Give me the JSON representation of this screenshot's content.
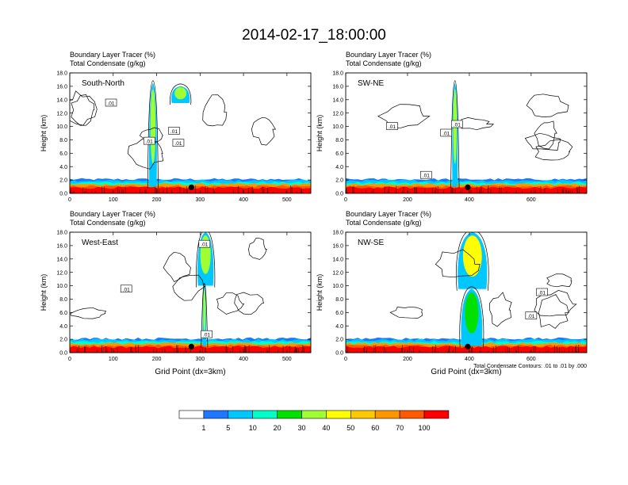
{
  "title": "2014-02-17_18:00:00",
  "colors": {
    "background": "#ffffff",
    "frame": "#000000",
    "contour": "#000000",
    "surface_marker": "#000000"
  },
  "colorbar": {
    "labels": [
      "1",
      "5",
      "10",
      "20",
      "30",
      "40",
      "50",
      "60",
      "70",
      "100"
    ],
    "colors": [
      "#ffffff",
      "#1e78ff",
      "#00c8ff",
      "#00ffc8",
      "#00e100",
      "#a0ff32",
      "#ffff00",
      "#ffc800",
      "#ff9600",
      "#ff5a00",
      "#ff0000"
    ]
  },
  "chart_data": [
    {
      "type": "heatmap",
      "panel_label": "South-North",
      "header_line1": "Boundary Layer Tracer    (%)",
      "header_line2": "Total Condensate    (g/kg)",
      "ylabel": "Height (km)",
      "xlabel": "",
      "xlim": [
        0,
        555
      ],
      "ylim": [
        0,
        18
      ],
      "xticks": [
        "0",
        "100",
        "200",
        "300",
        "400",
        "500"
      ],
      "xtick_values": [
        0,
        100,
        200,
        300,
        400,
        500
      ],
      "yticks": [
        "0.0",
        "2.0",
        "4.0",
        "6.0",
        "8.0",
        "10.0",
        "12.0",
        "14.0",
        "16.0",
        "18.0"
      ],
      "surface_point_x": 280,
      "plumes": [
        {
          "x0": 183,
          "x1": 200,
          "ytop": 16.5,
          "intensity": 30
        },
        {
          "x0": 235,
          "x1": 275,
          "ytop": 16.0,
          "ybottom": 13.5,
          "intensity": 30
        }
      ],
      "contour_labels": [
        {
          "text": ".01",
          "x": 95,
          "y": 13.5
        },
        {
          "text": ".01",
          "x": 240,
          "y": 9.3
        },
        {
          "text": ".01",
          "x": 183,
          "y": 7.8
        },
        {
          "text": ".01",
          "x": 250,
          "y": 7.5
        }
      ]
    },
    {
      "type": "heatmap",
      "panel_label": "SW-NE",
      "header_line1": "Boundary Layer Tracer    (%)",
      "header_line2": "Total Condensate    (g/kg)",
      "ylabel": "Height (km)",
      "xlabel": "",
      "xlim": [
        0,
        780
      ],
      "ylim": [
        0,
        18
      ],
      "xticks": [
        "0",
        "200",
        "400",
        "600"
      ],
      "xtick_values": [
        0,
        200,
        400,
        600
      ],
      "yticks": [
        "0.0",
        "2.0",
        "4.0",
        "6.0",
        "8.0",
        "10.0",
        "12.0",
        "14.0",
        "16.0",
        "18.0"
      ],
      "surface_point_x": 395,
      "plumes": [
        {
          "x0": 345,
          "x1": 362,
          "ytop": 16.5,
          "intensity": 30
        }
      ],
      "contour_labels": [
        {
          "text": ".01",
          "x": 150,
          "y": 10.0
        },
        {
          "text": ".01",
          "x": 360,
          "y": 10.3
        },
        {
          "text": ".01",
          "x": 325,
          "y": 9.0
        },
        {
          "text": ".01",
          "x": 260,
          "y": 2.7
        }
      ]
    },
    {
      "type": "heatmap",
      "panel_label": "West-East",
      "header_line1": "Boundary Layer Tracer    (%)",
      "header_line2": "Total Condensate    (g/kg)",
      "ylabel": "Height (km)",
      "xlabel": "Grid Point (dx=3km)",
      "xlim": [
        0,
        555
      ],
      "ylim": [
        0,
        18
      ],
      "xticks": [
        "0",
        "100",
        "200",
        "300",
        "400",
        "500"
      ],
      "xtick_values": [
        0,
        100,
        200,
        300,
        400,
        500
      ],
      "yticks": [
        "0.0",
        "2.0",
        "4.0",
        "6.0",
        "8.0",
        "10.0",
        "12.0",
        "14.0",
        "16.0",
        "18.0"
      ],
      "surface_point_x": 280,
      "plumes": [
        {
          "x0": 295,
          "x1": 330,
          "ytop": 18.0,
          "ybottom": 10.0,
          "intensity": 30
        },
        {
          "x0": 306,
          "x1": 314,
          "ytop": 10.0,
          "intensity": 30
        }
      ],
      "contour_labels": [
        {
          "text": ".01",
          "x": 310,
          "y": 16.2
        },
        {
          "text": ".01",
          "x": 130,
          "y": 9.5
        },
        {
          "text": ".01",
          "x": 315,
          "y": 2.7
        }
      ]
    },
    {
      "type": "heatmap",
      "panel_label": "NW-SE",
      "header_line1": "Boundary Layer Tracer    (%)",
      "header_line2": "Total Condensate    (g/kg)",
      "ylabel": "Height (km)",
      "xlabel": "Grid Point (dx=3km)",
      "note": "Total Condensate Contours: .01 to .01 by .000",
      "xlim": [
        0,
        780
      ],
      "ylim": [
        0,
        18
      ],
      "xticks": [
        "0",
        "200",
        "400",
        "600"
      ],
      "xtick_values": [
        0,
        200,
        400,
        600
      ],
      "yticks": [
        "0.0",
        "2.0",
        "4.0",
        "6.0",
        "8.0",
        "10.0",
        "12.0",
        "14.0",
        "16.0",
        "18.0"
      ],
      "surface_point_x": 395,
      "plumes": [
        {
          "x0": 365,
          "x1": 455,
          "ytop": 18.0,
          "ybottom": 9.5,
          "intensity": 40
        },
        {
          "x0": 375,
          "x1": 440,
          "ytop": 9.5,
          "intensity": 20
        }
      ],
      "contour_labels": [
        {
          "text": ".01",
          "x": 635,
          "y": 9.0
        },
        {
          "text": ".01",
          "x": 600,
          "y": 5.5
        }
      ]
    }
  ]
}
